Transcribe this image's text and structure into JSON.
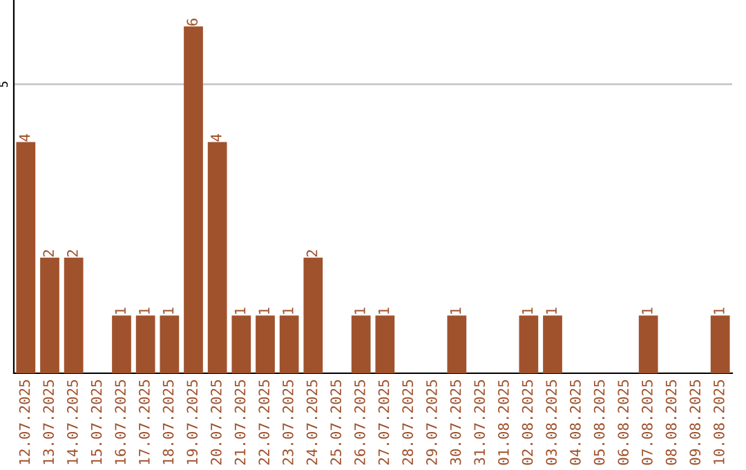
{
  "chart_data": {
    "type": "bar",
    "categories": [
      "12.07.2025",
      "13.07.2025",
      "14.07.2025",
      "15.07.2025",
      "16.07.2025",
      "17.07.2025",
      "18.07.2025",
      "19.07.2025",
      "20.07.2025",
      "21.07.2025",
      "22.07.2025",
      "23.07.2025",
      "24.07.2025",
      "25.07.2025",
      "26.07.2025",
      "27.07.2025",
      "28.07.2025",
      "29.07.2025",
      "30.07.2025",
      "31.07.2025",
      "01.08.2025",
      "02.08.2025",
      "03.08.2025",
      "04.08.2025",
      "05.08.2025",
      "06.08.2025",
      "07.08.2025",
      "08.08.2025",
      "09.08.2025",
      "10.08.2025"
    ],
    "values": [
      4,
      2,
      2,
      0,
      1,
      1,
      1,
      6,
      4,
      1,
      1,
      1,
      2,
      0,
      1,
      1,
      0,
      0,
      1,
      0,
      0,
      1,
      1,
      0,
      0,
      0,
      1,
      0,
      0,
      1
    ],
    "value_labels": [
      "4",
      "2",
      "2",
      null,
      "1",
      "1",
      "1",
      "6",
      "4",
      "1",
      "1",
      "1",
      "2",
      null,
      "1",
      "1",
      null,
      null,
      "1",
      null,
      null,
      "1",
      "1",
      null,
      null,
      null,
      "1",
      null,
      null,
      "1"
    ],
    "color": "#a0522d",
    "ylim": [
      0,
      6.45
    ],
    "yticks": [
      5
    ],
    "grid": "y"
  }
}
